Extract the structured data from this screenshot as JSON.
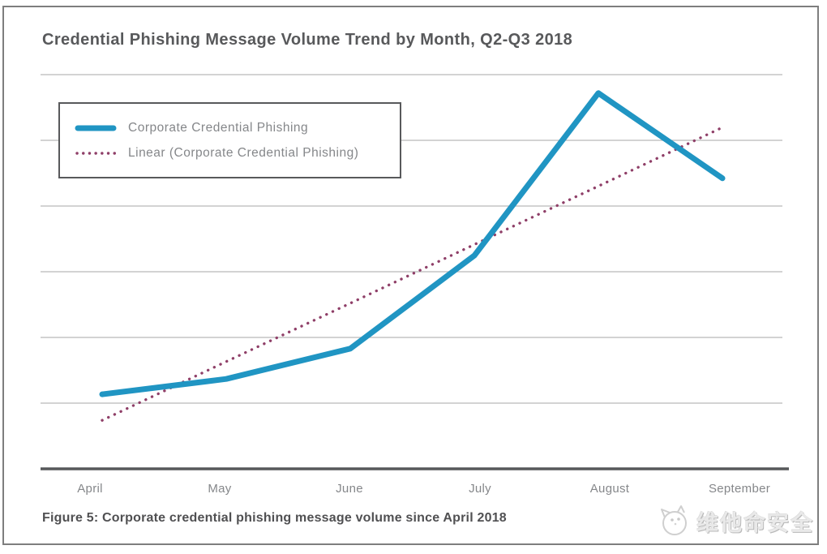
{
  "title": "Credential Phishing Message Volume Trend by Month, Q2-Q3 2018",
  "caption": "Figure 5: Corporate credential phishing message volume since April 2018",
  "watermark": {
    "text": "维他命安全",
    "icon": "cat-face-icon"
  },
  "legend": {
    "position": "top-left",
    "items": [
      {
        "label": "Corporate Credential Phishing",
        "style": "solid",
        "color": "#2095c3"
      },
      {
        "label": "Linear (Corporate Credential Phishing)",
        "style": "dotted",
        "color": "#8f3f68"
      }
    ]
  },
  "colors": {
    "title_text": "#58595b",
    "axis_label_text": "#85878a",
    "gridline": "#b9b9b9",
    "x_axis_line": "#57585a",
    "series_solid": "#2095c3",
    "series_dotted": "#8f3f68",
    "frame_border": "#7e7e7e",
    "legend_border": "#58595b"
  },
  "chart_data": {
    "type": "line",
    "title": "Credential Phishing Message Volume Trend by Month, Q2-Q3 2018",
    "categories": [
      "April",
      "May",
      "June",
      "July",
      "August",
      "September"
    ],
    "series": [
      {
        "name": "Corporate Credential Phishing",
        "color": "#2095c3",
        "line_style": "solid",
        "values": [
          18.9,
          22.8,
          30.5,
          54.1,
          95.3,
          73.7
        ]
      },
      {
        "name": "Linear (Corporate Credential Phishing)",
        "color": "#8f3f68",
        "line_style": "dotted",
        "values": [
          12.3,
          27.2,
          42.0,
          56.9,
          71.7,
          86.6
        ]
      }
    ],
    "xlabel": "",
    "ylabel": "",
    "ylim": [
      0,
      100
    ],
    "units": "relative message volume (y-axis unlabeled in source)",
    "grid": "horizontal only",
    "gridline_count": 6,
    "y_axis_labels_visible": false,
    "legend_position": "top-left"
  }
}
